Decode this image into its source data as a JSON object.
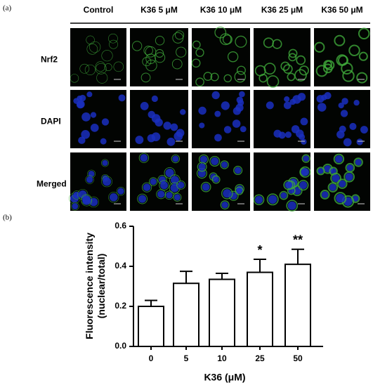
{
  "panel_a": {
    "label": "(a)",
    "columns": [
      "Control",
      "K36 5 μM",
      "K36 10 μM",
      "K36 25 μM",
      "K36 50 μM"
    ],
    "rows": [
      "Nrf2",
      "DAPI",
      "Merged"
    ]
  },
  "panel_b_label": "(b)",
  "chart_data": {
    "type": "bar",
    "y_label": [
      "Fluorescence intensity",
      "(nuclear/total)"
    ],
    "x_label": "K36 (μM)",
    "categories": [
      "0",
      "5",
      "10",
      "25",
      "50"
    ],
    "values": [
      0.2,
      0.315,
      0.335,
      0.37,
      0.41
    ],
    "errors": [
      0.03,
      0.06,
      0.03,
      0.065,
      0.075
    ],
    "significance": [
      null,
      null,
      null,
      "*",
      "**"
    ],
    "color": "#ffffff",
    "ylim": [
      0,
      0.6
    ],
    "yticks": [
      {
        "value": 0,
        "label": "0.0"
      },
      0.2,
      0.4,
      0.6
    ]
  }
}
